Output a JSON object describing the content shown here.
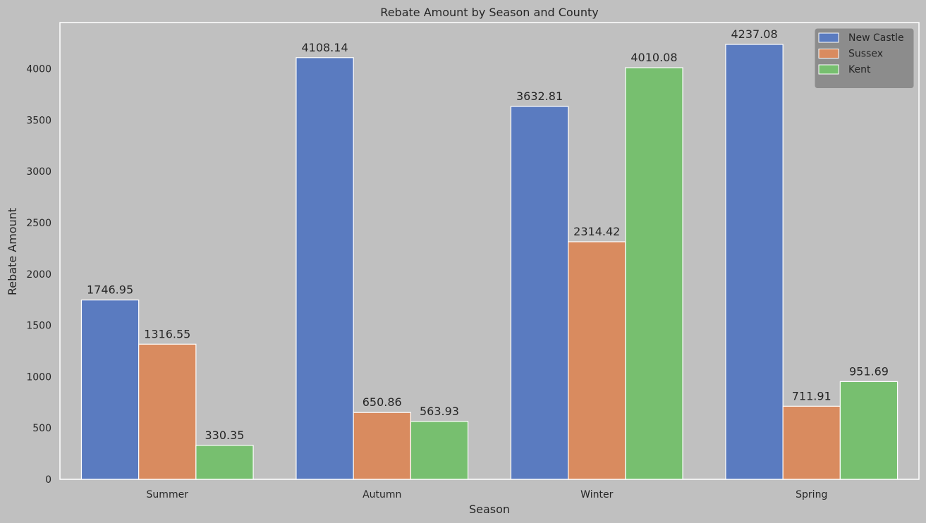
{
  "chart_data": {
    "type": "bar",
    "title": "Rebate Amount by Season and County",
    "xlabel": "Season",
    "ylabel": "Rebate Amount",
    "categories": [
      "Summer",
      "Autumn",
      "Winter",
      "Spring"
    ],
    "series": [
      {
        "name": "New Castle",
        "color": "#5a7bc0",
        "values": [
          1746.95,
          4108.14,
          3632.81,
          4237.08
        ]
      },
      {
        "name": "Sussex",
        "color": "#d98b5f",
        "values": [
          1316.55,
          650.86,
          2314.42,
          711.91
        ]
      },
      {
        "name": "Kent",
        "color": "#77bf6f",
        "values": [
          330.35,
          563.93,
          4010.08,
          951.69
        ]
      }
    ],
    "ylim": [
      0,
      4450
    ],
    "yticks": [
      0,
      500,
      1000,
      1500,
      2000,
      2500,
      3000,
      3500,
      4000
    ],
    "grid": false,
    "legend_position": "top-right",
    "data_labels": true
  }
}
